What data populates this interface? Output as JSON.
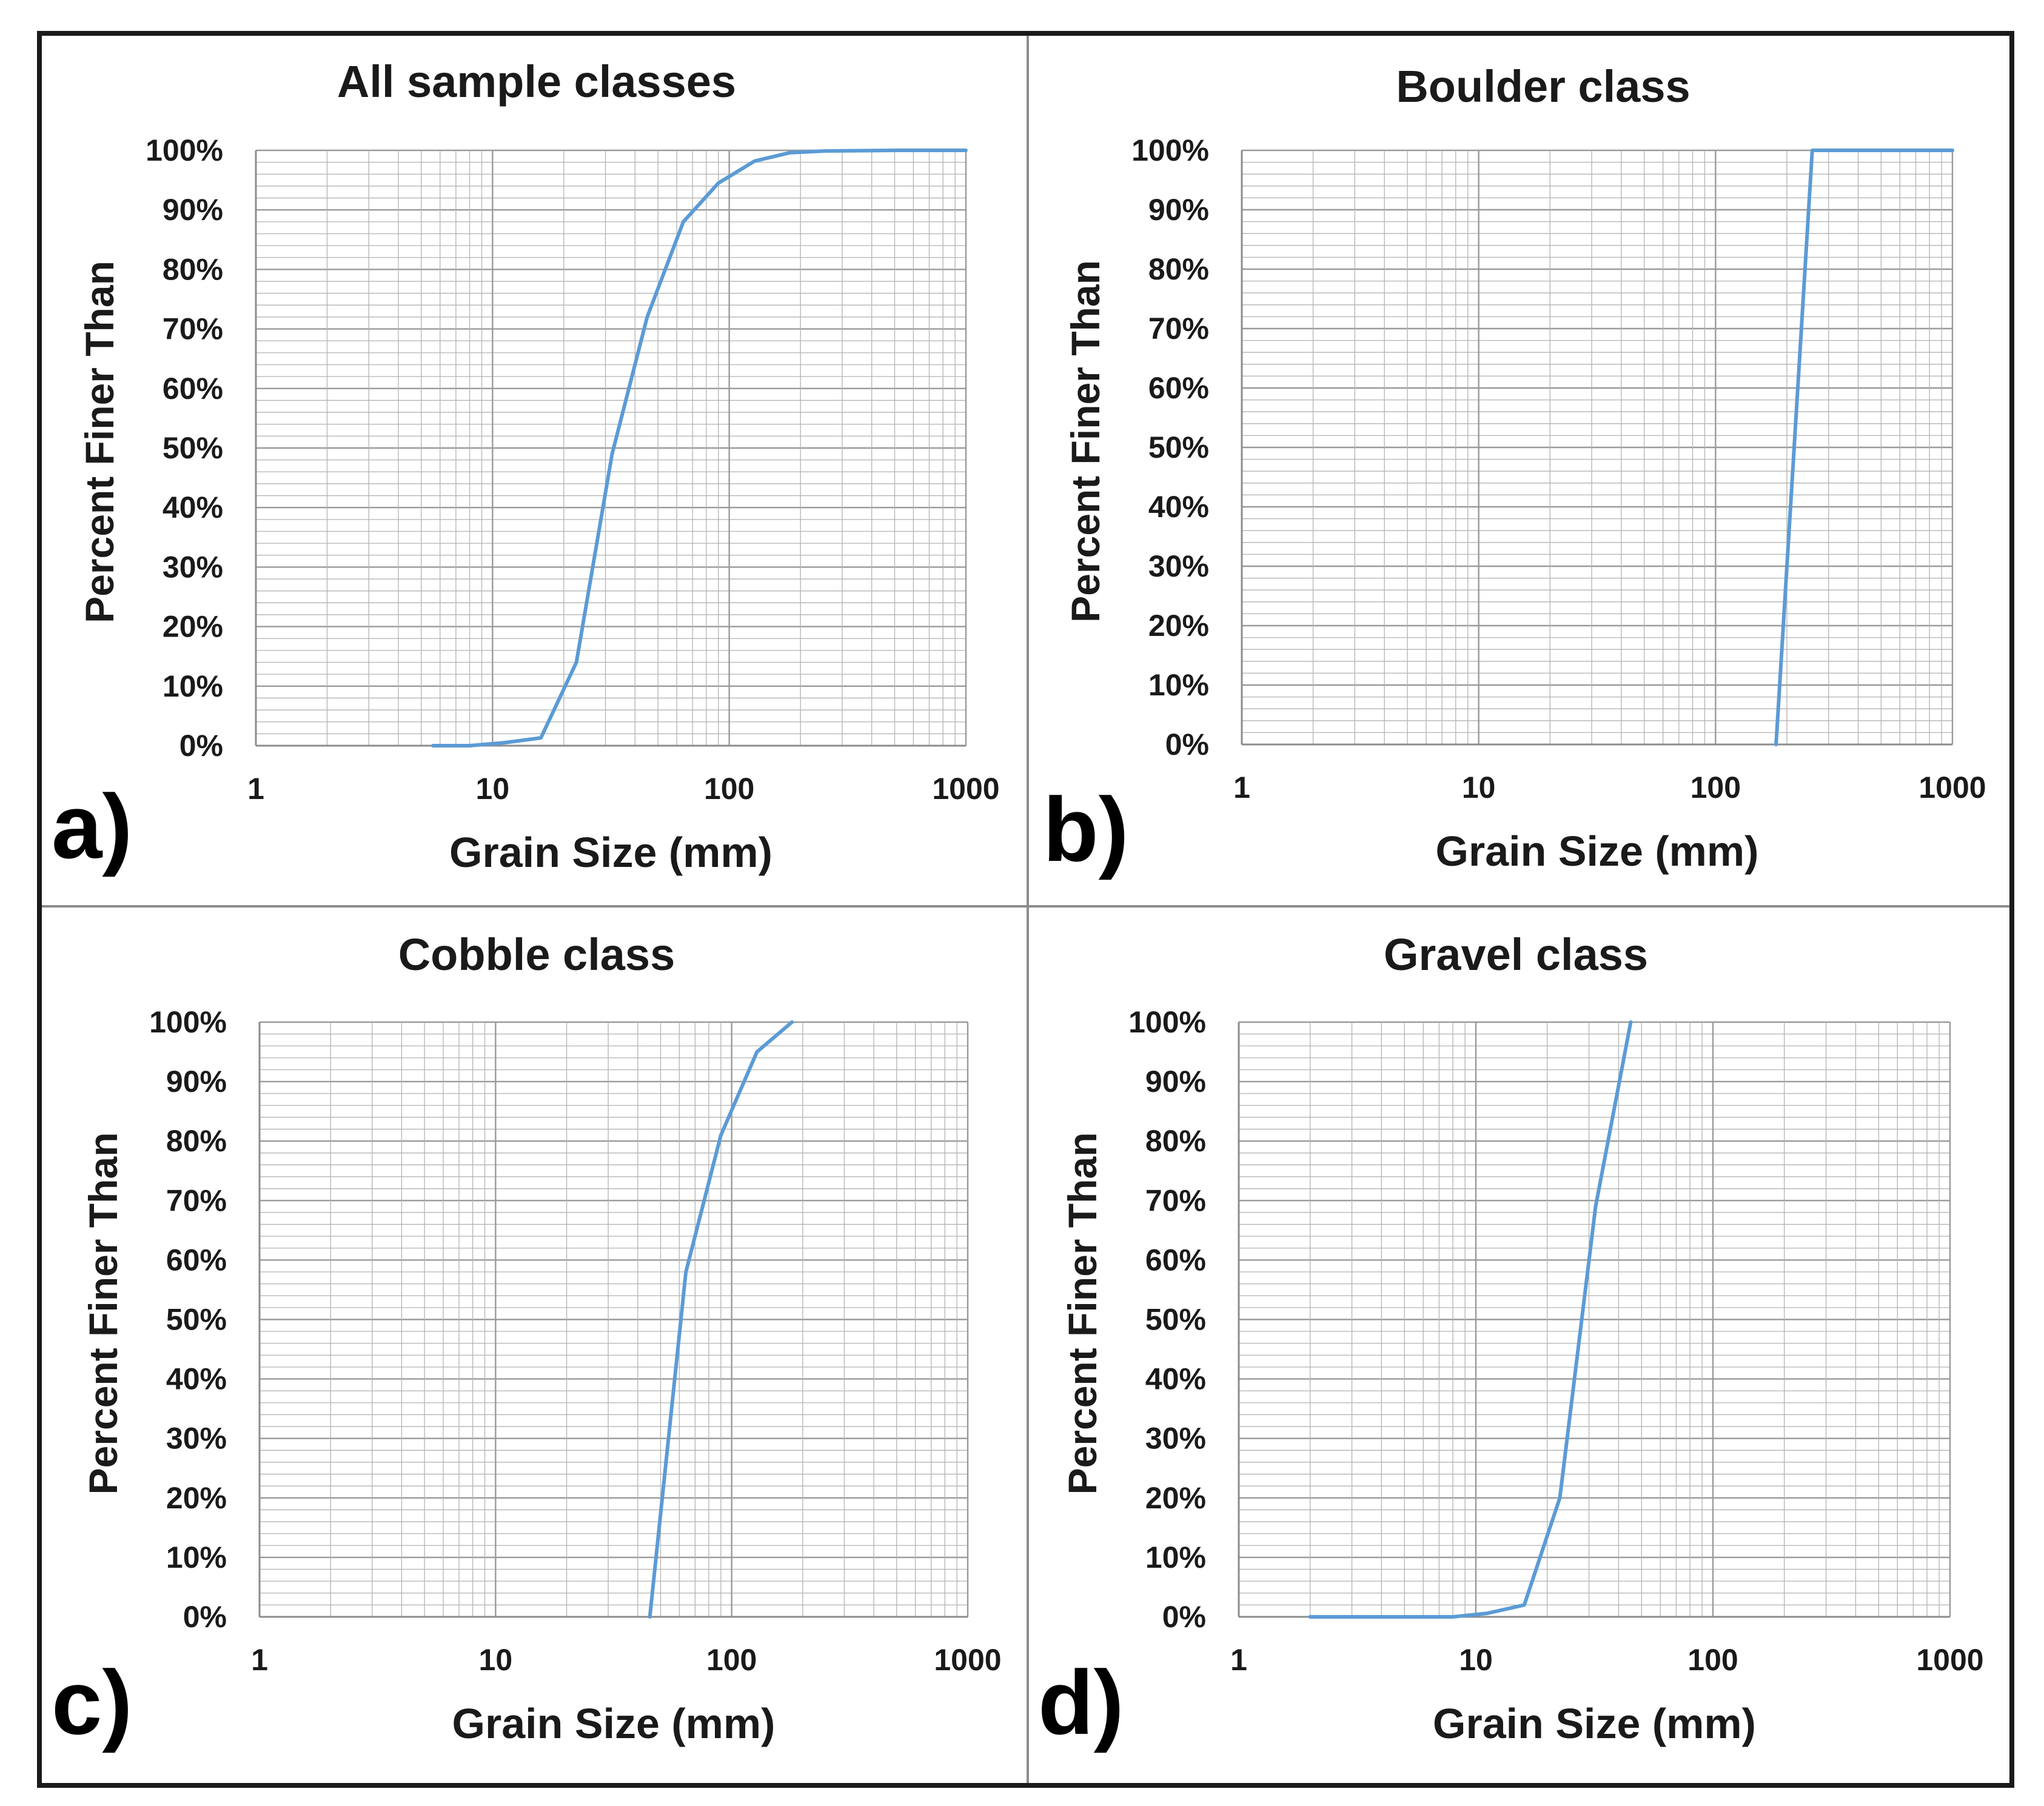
{
  "colors": {
    "line": "#5b9bd5",
    "grid": "#b3b3b3",
    "frame": "#1a1a1a",
    "divider": "#8c8c8c",
    "text": "#1a1a1a"
  },
  "chart_data": [
    {
      "type": "line",
      "panel_label": "a)",
      "title": "All sample classes",
      "xlabel": "Grain Size (mm)",
      "ylabel": "Percent Finer Than",
      "xscale": "log",
      "xlim": [
        1,
        1000
      ],
      "ylim": [
        0,
        100
      ],
      "xticks": [
        "1",
        "10",
        "100",
        "1000"
      ],
      "yticks": [
        "0%",
        "10%",
        "20%",
        "30%",
        "40%",
        "50%",
        "60%",
        "70%",
        "80%",
        "90%",
        "100%"
      ],
      "grid": true,
      "series": [
        {
          "name": "All sample classes",
          "x": [
            5.6,
            8,
            11.2,
            16,
            22.6,
            32,
            45,
            64,
            90,
            128,
            180,
            256,
            512,
            1000
          ],
          "y": [
            0,
            0,
            0.5,
            1.3,
            14,
            49,
            72,
            88,
            94.5,
            98.2,
            99.6,
            99.9,
            100,
            100
          ]
        }
      ]
    },
    {
      "type": "line",
      "panel_label": "b)",
      "title": "Boulder class",
      "xlabel": "Grain Size (mm)",
      "ylabel": "Percent Finer Than",
      "xscale": "log",
      "xlim": [
        1,
        1000
      ],
      "ylim": [
        0,
        100
      ],
      "xticks": [
        "1",
        "10",
        "100",
        "1000"
      ],
      "yticks": [
        "0%",
        "10%",
        "20%",
        "30%",
        "40%",
        "50%",
        "60%",
        "70%",
        "80%",
        "90%",
        "100%"
      ],
      "grid": true,
      "series": [
        {
          "name": "Boulder class",
          "x": [
            180,
            256,
            512,
            1000
          ],
          "y": [
            0,
            100,
            100,
            100
          ]
        }
      ]
    },
    {
      "type": "line",
      "panel_label": "c)",
      "title": "Cobble class",
      "xlabel": "Grain Size (mm)",
      "ylabel": "Percent Finer Than",
      "xscale": "log",
      "xlim": [
        1,
        1000
      ],
      "ylim": [
        0,
        100
      ],
      "xticks": [
        "1",
        "10",
        "100",
        "1000"
      ],
      "yticks": [
        "0%",
        "10%",
        "20%",
        "30%",
        "40%",
        "50%",
        "60%",
        "70%",
        "80%",
        "90%",
        "100%"
      ],
      "grid": true,
      "series": [
        {
          "name": "Cobble class",
          "x": [
            45,
            64,
            90,
            128,
            180
          ],
          "y": [
            0,
            58,
            81,
            95,
            100
          ]
        }
      ]
    },
    {
      "type": "line",
      "panel_label": "d)",
      "title": "Gravel class",
      "xlabel": "Grain Size (mm)",
      "ylabel": "Percent Finer Than",
      "xscale": "log",
      "xlim": [
        1,
        1000
      ],
      "ylim": [
        0,
        100
      ],
      "xticks": [
        "1",
        "10",
        "100",
        "1000"
      ],
      "yticks": [
        "0%",
        "10%",
        "20%",
        "30%",
        "40%",
        "50%",
        "60%",
        "70%",
        "80%",
        "90%",
        "100%"
      ],
      "grid": true,
      "series": [
        {
          "name": "Gravel class",
          "x": [
            2,
            4,
            8,
            11.2,
            16,
            22.6,
            32,
            45
          ],
          "y": [
            0,
            0,
            0,
            0.6,
            2,
            20,
            69,
            100
          ]
        }
      ]
    }
  ]
}
